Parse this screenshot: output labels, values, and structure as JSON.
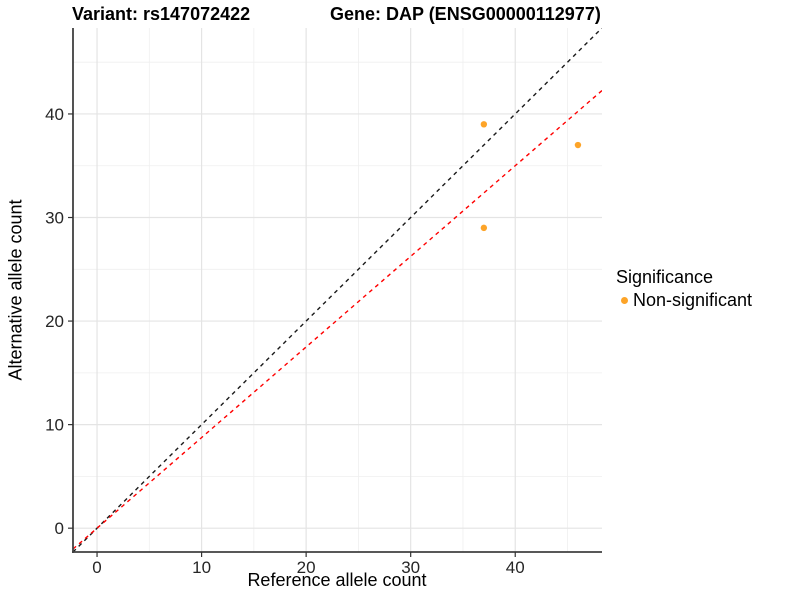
{
  "chart_data": {
    "type": "scatter",
    "title_left": "Variant: rs147072422",
    "title_right": "Gene: DAP (ENSG00000112977)",
    "xlabel": "Reference allele count",
    "ylabel": "Alternative allele count",
    "xlim": [
      -2.3,
      48.3
    ],
    "ylim": [
      -2.3,
      48.3
    ],
    "x_major_ticks": [
      0,
      10,
      20,
      30,
      40
    ],
    "y_major_ticks": [
      0,
      10,
      20,
      30,
      40
    ],
    "x_minor_ticks": [
      5,
      15,
      25,
      35,
      45
    ],
    "y_minor_ticks": [
      5,
      15,
      25,
      35,
      45
    ],
    "grid": "on",
    "panel_background": "#ffffff",
    "major_grid_color": "#e4e4e4",
    "minor_grid_color": "#efefef",
    "axis_line_color": "#404040",
    "series": [
      {
        "name": "Non-significant",
        "color": "#FDA428",
        "points": [
          {
            "x": 37,
            "y": 39
          },
          {
            "x": 46,
            "y": 37
          },
          {
            "x": 37,
            "y": 29
          }
        ]
      }
    ],
    "reference_lines": [
      {
        "name": "identity-line",
        "slope": 1.0,
        "intercept": 0,
        "color": "#1a1a1a",
        "style": "dashed"
      },
      {
        "name": "fitted-ratio-line",
        "slope": 0.875,
        "intercept": 0,
        "color": "#ff0000",
        "style": "dashed"
      }
    ],
    "legend": {
      "position": "right",
      "title": "Significance",
      "items": [
        {
          "label": "Non-significant",
          "color": "#FDA428"
        }
      ]
    }
  }
}
